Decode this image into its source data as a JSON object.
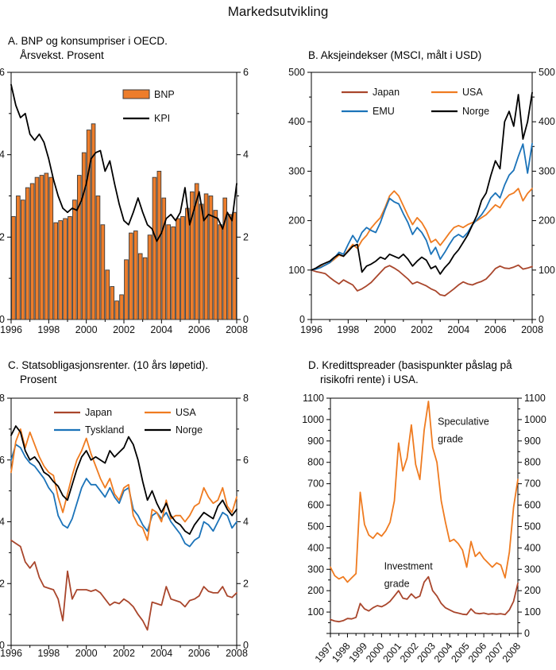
{
  "title": "Markedsutvikling",
  "colors": {
    "orange": "#EF7B20",
    "brick": "#A9462C",
    "blue": "#1B73B9",
    "black": "#000000",
    "bar_fill": "#ED7D2B",
    "bar_stroke": "#3C3C3C",
    "axis": "#000000"
  },
  "chart_data": [
    {
      "id": "A",
      "type": "bar",
      "title_lines": [
        "A. BNP og konsumpriser i OECD.",
        "Årsvekst. Prosent"
      ],
      "x_range": [
        1996,
        2008
      ],
      "x_ticks": [
        1996,
        1998,
        2000,
        2002,
        2004,
        2006,
        2008
      ],
      "x_minor_ticks": [
        1997,
        1999,
        2001,
        2003,
        2005,
        2007
      ],
      "ylim": [
        0,
        6
      ],
      "y_ticks": [
        0,
        2,
        4,
        6
      ],
      "y_minor_ticks": [
        1,
        3,
        5
      ],
      "grid": false,
      "legend_position": "inside-top-center",
      "legend": [
        {
          "label": "BNP",
          "color": "bar_fill",
          "kind": "bar"
        },
        {
          "label": "KPI",
          "color": "black",
          "kind": "line"
        }
      ],
      "bar_series": {
        "name": "BNP",
        "color": "bar_fill",
        "start": 1996,
        "step": 0.25,
        "values": [
          2.5,
          3.0,
          2.9,
          3.2,
          3.3,
          3.45,
          3.5,
          3.55,
          3.45,
          2.35,
          2.4,
          2.45,
          2.5,
          2.9,
          3.5,
          4.05,
          4.6,
          4.75,
          3.0,
          2.3,
          1.2,
          0.8,
          0.45,
          0.6,
          1.45,
          2.1,
          2.15,
          1.6,
          1.5,
          2.05,
          3.45,
          3.6,
          2.95,
          2.3,
          2.25,
          2.45,
          2.5,
          2.7,
          3.1,
          3.3,
          2.8,
          3.05,
          3.0,
          2.65,
          2.3,
          2.95,
          2.55,
          2.6
        ]
      },
      "series": [
        {
          "name": "KPI",
          "color": "black",
          "start": 1996,
          "end": 2008,
          "values": [
            5.7,
            5.2,
            4.9,
            5.0,
            4.5,
            4.35,
            4.5,
            4.3,
            3.9,
            3.4,
            3.0,
            2.7,
            2.6,
            2.7,
            2.65,
            2.9,
            3.3,
            3.9,
            4.05,
            4.1,
            3.6,
            3.85,
            3.3,
            2.8,
            2.4,
            2.3,
            2.6,
            2.95,
            2.6,
            2.3,
            2.2,
            1.9,
            2.1,
            2.45,
            2.55,
            2.4,
            2.6,
            3.2,
            2.3,
            2.7,
            3.1,
            2.4,
            2.55,
            2.5,
            2.45,
            2.2,
            2.6,
            2.4,
            3.3
          ]
        }
      ]
    },
    {
      "id": "B",
      "type": "line",
      "title_lines": [
        "B. Aksjeindekser (MSCI, målt i USD)"
      ],
      "x_range": [
        1996,
        2008
      ],
      "x_ticks": [
        1996,
        1998,
        2000,
        2002,
        2004,
        2006,
        2008
      ],
      "x_minor_ticks": [
        1997,
        1999,
        2001,
        2003,
        2005,
        2007
      ],
      "ylim": [
        0,
        500
      ],
      "y_ticks": [
        0,
        100,
        200,
        300,
        400,
        500
      ],
      "y_minor_ticks": [
        50,
        150,
        250,
        350,
        450
      ],
      "grid": false,
      "legend_position": "inside-top",
      "legend": [
        {
          "label": "Japan",
          "color": "brick",
          "kind": "line"
        },
        {
          "label": "USA",
          "color": "orange",
          "kind": "line"
        },
        {
          "label": "EMU",
          "color": "blue",
          "kind": "line"
        },
        {
          "label": "Norge",
          "color": "black",
          "kind": "line"
        }
      ],
      "series": [
        {
          "name": "Japan",
          "color": "brick",
          "start": 1996,
          "end": 2008,
          "values": [
            100,
            97,
            95,
            93,
            85,
            78,
            72,
            80,
            75,
            70,
            58,
            62,
            68,
            75,
            85,
            95,
            105,
            109,
            104,
            98,
            90,
            82,
            72,
            76,
            72,
            68,
            62,
            58,
            50,
            48,
            55,
            62,
            70,
            76,
            72,
            70,
            74,
            77,
            82,
            92,
            103,
            108,
            104,
            103,
            106,
            110,
            102,
            104,
            107
          ]
        },
        {
          "name": "USA",
          "color": "orange",
          "start": 1996,
          "end": 2008,
          "values": [
            100,
            103,
            107,
            110,
            115,
            122,
            130,
            128,
            140,
            152,
            144,
            160,
            170,
            185,
            196,
            206,
            226,
            250,
            260,
            250,
            230,
            210,
            192,
            206,
            196,
            180,
            156,
            162,
            150,
            162,
            175,
            186,
            190,
            186,
            192,
            196,
            200,
            206,
            212,
            222,
            232,
            226,
            242,
            252,
            256,
            265,
            240,
            255,
            265
          ]
        },
        {
          "name": "EMU",
          "color": "blue",
          "start": 1996,
          "end": 2008,
          "values": [
            100,
            102,
            105,
            110,
            115,
            125,
            136,
            132,
            152,
            170,
            156,
            176,
            186,
            180,
            176,
            196,
            222,
            245,
            238,
            234,
            214,
            196,
            172,
            186,
            176,
            160,
            132,
            146,
            122,
            136,
            152,
            166,
            172,
            166,
            176,
            192,
            202,
            212,
            226,
            246,
            256,
            246,
            272,
            292,
            302,
            330,
            355,
            296,
            356
          ]
        },
        {
          "name": "Norge",
          "color": "black",
          "start": 1996,
          "end": 2008,
          "values": [
            100,
            104,
            110,
            114,
            118,
            126,
            132,
            128,
            138,
            148,
            152,
            96,
            108,
            112,
            118,
            126,
            122,
            132,
            128,
            124,
            132,
            122,
            108,
            118,
            126,
            120,
            103,
            108,
            92,
            105,
            115,
            130,
            141,
            156,
            171,
            191,
            211,
            241,
            256,
            291,
            321,
            305,
            400,
            421,
            391,
            455,
            365,
            400,
            459
          ]
        }
      ]
    },
    {
      "id": "C",
      "type": "line",
      "title_lines": [
        "C. Statsobligasjonsrenter. (10 års løpetid).",
        "Prosent"
      ],
      "x_range": [
        1996,
        2008
      ],
      "x_ticks": [
        1996,
        1998,
        2000,
        2002,
        2004,
        2006,
        2008
      ],
      "x_minor_ticks": [
        1997,
        1999,
        2001,
        2003,
        2005,
        2007
      ],
      "ylim": [
        0,
        8
      ],
      "y_ticks": [
        0,
        2,
        4,
        6,
        8
      ],
      "y_minor_ticks": [
        1,
        3,
        5,
        7
      ],
      "grid": false,
      "legend_position": "inside-top",
      "legend": [
        {
          "label": "Japan",
          "color": "brick",
          "kind": "line"
        },
        {
          "label": "USA",
          "color": "orange",
          "kind": "line"
        },
        {
          "label": "Tyskland",
          "color": "blue",
          "kind": "line"
        },
        {
          "label": "Norge",
          "color": "black",
          "kind": "line"
        }
      ],
      "series": [
        {
          "name": "Japan",
          "color": "brick",
          "start": 1996,
          "end": 2008,
          "values": [
            3.4,
            3.3,
            3.2,
            2.7,
            2.5,
            2.7,
            2.2,
            1.9,
            1.85,
            1.8,
            1.5,
            0.8,
            2.4,
            1.5,
            1.8,
            1.8,
            1.8,
            1.75,
            1.8,
            1.7,
            1.5,
            1.3,
            1.4,
            1.35,
            1.5,
            1.4,
            1.25,
            1.0,
            0.8,
            0.5,
            1.4,
            1.35,
            1.3,
            1.9,
            1.5,
            1.45,
            1.4,
            1.25,
            1.45,
            1.5,
            1.6,
            1.9,
            1.75,
            1.7,
            1.7,
            1.9,
            1.6,
            1.55,
            1.7
          ]
        },
        {
          "name": "Tyskland",
          "color": "blue",
          "start": 1996,
          "end": 2008,
          "values": [
            6.0,
            6.5,
            6.4,
            6.1,
            5.9,
            5.8,
            5.6,
            5.4,
            5.1,
            4.9,
            4.2,
            3.9,
            3.8,
            4.1,
            4.6,
            5.1,
            5.4,
            5.2,
            5.2,
            5.0,
            4.8,
            5.1,
            4.8,
            4.6,
            5.0,
            5.1,
            4.4,
            4.2,
            3.9,
            3.7,
            4.2,
            4.3,
            4.1,
            4.3,
            4.0,
            3.8,
            3.6,
            3.3,
            3.2,
            3.4,
            3.5,
            4.0,
            3.9,
            3.7,
            4.0,
            4.3,
            4.2,
            3.8,
            4.0
          ]
        },
        {
          "name": "USA",
          "color": "orange",
          "start": 1996,
          "end": 2008,
          "values": [
            5.6,
            6.6,
            7.0,
            6.4,
            6.9,
            6.5,
            6.1,
            5.8,
            5.6,
            5.5,
            4.8,
            4.3,
            4.9,
            5.5,
            6.0,
            6.3,
            6.7,
            6.2,
            5.8,
            5.4,
            5.1,
            5.4,
            4.9,
            4.7,
            5.1,
            5.2,
            4.2,
            3.9,
            3.8,
            3.4,
            4.4,
            4.3,
            4.0,
            4.7,
            4.1,
            4.2,
            4.2,
            4.0,
            4.2,
            4.5,
            4.6,
            5.1,
            4.8,
            4.6,
            4.7,
            5.1,
            4.5,
            4.3,
            4.8
          ]
        },
        {
          "name": "Norge",
          "color": "black",
          "start": 1996,
          "end": 2008,
          "values": [
            6.8,
            7.1,
            6.9,
            6.3,
            6.0,
            6.1,
            5.9,
            5.6,
            5.5,
            5.3,
            5.15,
            4.85,
            4.7,
            5.2,
            5.7,
            6.1,
            6.3,
            6.0,
            6.1,
            6.0,
            5.9,
            6.3,
            6.1,
            6.25,
            6.4,
            6.75,
            6.5,
            6.0,
            5.3,
            4.7,
            5.0,
            4.6,
            4.3,
            4.6,
            4.2,
            4.0,
            3.9,
            3.7,
            3.6,
            3.9,
            4.1,
            4.3,
            4.2,
            4.1,
            4.5,
            4.7,
            4.4,
            4.2,
            4.4
          ]
        }
      ]
    },
    {
      "id": "D",
      "type": "line",
      "title_lines": [
        "D. Kredittspreader (basispunkter påslag på",
        "risikofri rente) i USA."
      ],
      "x_range": [
        1997,
        2008
      ],
      "x_ticks": [
        1997,
        1998,
        1999,
        2000,
        2001,
        2002,
        2003,
        2004,
        2005,
        2006,
        2007,
        2008
      ],
      "x_minor_ticks": [
        1997.5,
        1998.5,
        1999.5,
        2000.5,
        2001.5,
        2002.5,
        2003.5,
        2004.5,
        2005.5,
        2006.5,
        2007.5
      ],
      "x_tick_rotation": -50,
      "ylim": [
        0,
        1100
      ],
      "y_ticks": [
        0,
        100,
        200,
        300,
        400,
        500,
        600,
        700,
        800,
        900,
        1000,
        1100
      ],
      "y_minor_ticks": [
        50,
        150,
        250,
        350,
        450,
        550,
        650,
        750,
        850,
        950,
        1050
      ],
      "y_label_left_skip": [
        0
      ],
      "grid": false,
      "annotations": [
        {
          "lines": [
            "Speculative",
            "grade"
          ],
          "x": 2003.3,
          "y": 975
        },
        {
          "lines": [
            "Investment",
            "grade"
          ],
          "x": 2000.15,
          "y": 300
        }
      ],
      "series": [
        {
          "name": "Speculative grade",
          "color": "orange",
          "start": 1997,
          "end": 2008,
          "values": [
            310,
            270,
            255,
            265,
            240,
            260,
            280,
            660,
            510,
            460,
            445,
            470,
            455,
            480,
            520,
            620,
            890,
            760,
            820,
            975,
            790,
            720,
            950,
            1085,
            870,
            800,
            620,
            520,
            430,
            440,
            420,
            390,
            310,
            430,
            360,
            380,
            350,
            330,
            310,
            330,
            320,
            260,
            380,
            590,
            720
          ]
        },
        {
          "name": "Investment grade",
          "color": "brick",
          "start": 1997,
          "end": 2008,
          "values": [
            65,
            58,
            55,
            60,
            70,
            68,
            75,
            140,
            115,
            105,
            120,
            130,
            125,
            135,
            150,
            175,
            200,
            165,
            160,
            185,
            165,
            175,
            240,
            265,
            200,
            175,
            140,
            120,
            110,
            100,
            95,
            90,
            88,
            115,
            95,
            92,
            95,
            90,
            92,
            90,
            92,
            88,
            110,
            150,
            235
          ]
        }
      ]
    }
  ]
}
